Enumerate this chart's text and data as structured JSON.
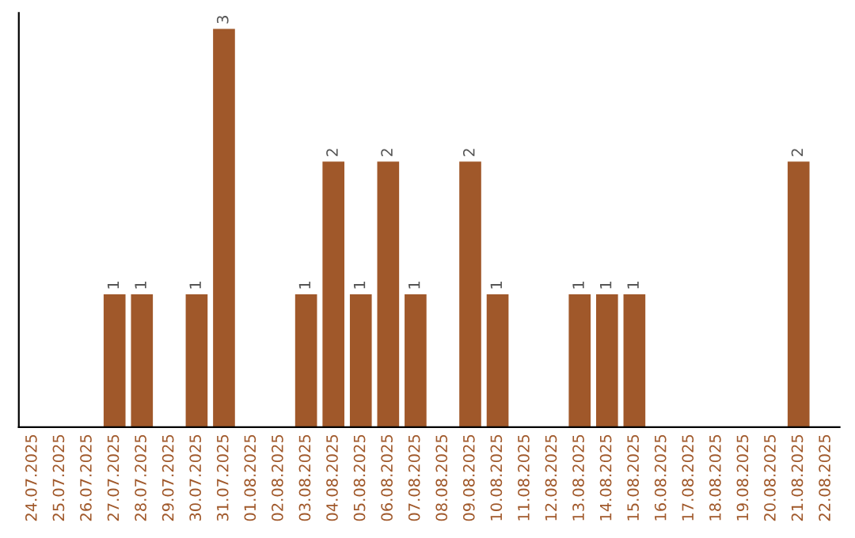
{
  "chart_data": {
    "type": "bar",
    "categories": [
      "24.07.2025",
      "25.07.2025",
      "26.07.2025",
      "27.07.2025",
      "28.07.2025",
      "29.07.2025",
      "30.07.2025",
      "31.07.2025",
      "01.08.2025",
      "02.08.2025",
      "03.08.2025",
      "04.08.2025",
      "05.08.2025",
      "06.08.2025",
      "07.08.2025",
      "08.08.2025",
      "09.08.2025",
      "10.08.2025",
      "11.08.2025",
      "12.08.2025",
      "13.08.2025",
      "14.08.2025",
      "15.08.2025",
      "16.08.2025",
      "17.08.2025",
      "18.08.2025",
      "19.08.2025",
      "20.08.2025",
      "21.08.2025",
      "22.08.2025"
    ],
    "values": [
      0,
      0,
      0,
      1,
      1,
      0,
      1,
      3,
      0,
      0,
      1,
      2,
      1,
      2,
      1,
      0,
      2,
      1,
      0,
      0,
      1,
      1,
      1,
      0,
      0,
      0,
      0,
      0,
      2,
      0
    ],
    "color": "#a0582a",
    "value_labels": [
      null,
      null,
      null,
      "1",
      "1",
      null,
      "1",
      "3",
      null,
      null,
      "1",
      "2",
      "1",
      "2",
      "1",
      null,
      "2",
      "1",
      null,
      null,
      "1",
      "1",
      "1",
      null,
      null,
      null,
      null,
      null,
      "2",
      null
    ],
    "tick_labels": "x",
    "grid": false,
    "legend": false
  }
}
